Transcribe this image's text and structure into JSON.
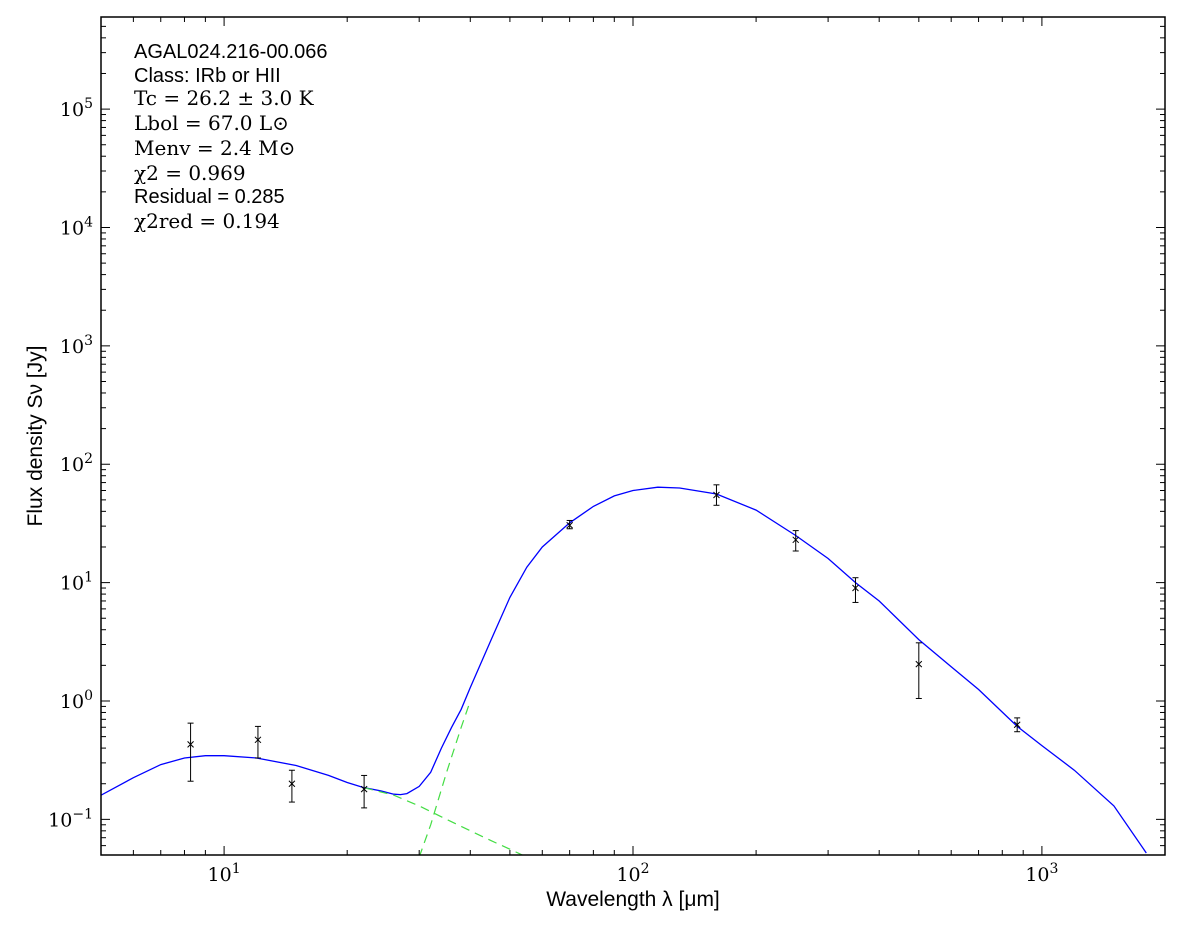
{
  "chart_data": {
    "type": "scatter",
    "xlabel": "Wavelength λ [μm]",
    "ylabel": "Flux density Sν [Jy]",
    "xscale": "log",
    "yscale": "log",
    "xlim": [
      5,
      2000
    ],
    "ylim": [
      0.05,
      600000
    ],
    "grid": false,
    "x_ticks": [
      {
        "value": 10,
        "base": "10",
        "exp": "1"
      },
      {
        "value": 100,
        "base": "10",
        "exp": "2"
      },
      {
        "value": 1000,
        "base": "10",
        "exp": "3"
      }
    ],
    "y_ticks": [
      {
        "value": 0.1,
        "base": "10",
        "exp": "−1"
      },
      {
        "value": 1,
        "base": "10",
        "exp": "0"
      },
      {
        "value": 10,
        "base": "10",
        "exp": "1"
      },
      {
        "value": 100,
        "base": "10",
        "exp": "2"
      },
      {
        "value": 1000,
        "base": "10",
        "exp": "3"
      },
      {
        "value": 10000,
        "base": "10",
        "exp": "4"
      },
      {
        "value": 100000,
        "base": "10",
        "exp": "5"
      }
    ],
    "annotations": {
      "name": "AGAL024.216-00.066",
      "class_text": "Class: IRb or HII",
      "tc": "Tc = 26.2 ± 3.0 K",
      "lbol": "Lbol = 67.0 L⊙",
      "menv": "Menv = 2.4 M⊙",
      "chi2": "χ2 = 0.969",
      "residual": "Residual = 0.285",
      "chi2red": "χ2red = 0.194"
    },
    "points": [
      {
        "x": 8.28,
        "y": 0.43,
        "yerr_low": 0.21,
        "yerr_high": 0.65
      },
      {
        "x": 12.1,
        "y": 0.47,
        "yerr_low": 0.33,
        "yerr_high": 0.61
      },
      {
        "x": 14.65,
        "y": 0.2,
        "yerr_low": 0.14,
        "yerr_high": 0.26
      },
      {
        "x": 22.0,
        "y": 0.18,
        "yerr_low": 0.125,
        "yerr_high": 0.235
      },
      {
        "x": 70,
        "y": 30.5,
        "yerr_low": 28.5,
        "yerr_high": 33.5
      },
      {
        "x": 160,
        "y": 55,
        "yerr_low": 45,
        "yerr_high": 67
      },
      {
        "x": 250,
        "y": 23,
        "yerr_low": 18.5,
        "yerr_high": 27.5
      },
      {
        "x": 350,
        "y": 9,
        "yerr_low": 6.8,
        "yerr_high": 11
      },
      {
        "x": 500,
        "y": 2.05,
        "yerr_low": 1.05,
        "yerr_high": 3.1
      },
      {
        "x": 870,
        "y": 0.63,
        "yerr_low": 0.55,
        "yerr_high": 0.72
      }
    ],
    "series": [
      {
        "style": "solid",
        "color": "#0000ff",
        "x": [
          5,
          6,
          7,
          8,
          9,
          10,
          12,
          15,
          18,
          20,
          22,
          24,
          26,
          27,
          28,
          30,
          32,
          34,
          36,
          38,
          40,
          45,
          50,
          55,
          60,
          70,
          80,
          90,
          100,
          115,
          130,
          160,
          200,
          250,
          300,
          350,
          400,
          500,
          600,
          700,
          870,
          1000,
          1200,
          1500,
          1800
        ],
        "y": [
          0.16,
          0.225,
          0.29,
          0.33,
          0.345,
          0.345,
          0.33,
          0.285,
          0.235,
          0.205,
          0.185,
          0.175,
          0.163,
          0.162,
          0.165,
          0.19,
          0.25,
          0.4,
          0.6,
          0.85,
          1.3,
          3.3,
          7.5,
          13.5,
          20,
          32,
          44,
          54,
          60,
          64,
          63,
          56,
          41,
          25,
          16,
          10,
          7,
          3.3,
          1.95,
          1.25,
          0.61,
          0.42,
          0.26,
          0.13,
          0.052
        ]
      },
      {
        "style": "dashed",
        "color": "#44dd44",
        "x": [
          22,
          26,
          30,
          35,
          40,
          45,
          50,
          55
        ],
        "y": [
          0.185,
          0.16,
          0.13,
          0.1,
          0.08,
          0.066,
          0.056,
          0.048
        ]
      },
      {
        "style": "dashed",
        "color": "#44dd44",
        "x": [
          30,
          32,
          35,
          38,
          40
        ],
        "y": [
          0.048,
          0.09,
          0.25,
          0.6,
          1.0
        ]
      }
    ]
  }
}
